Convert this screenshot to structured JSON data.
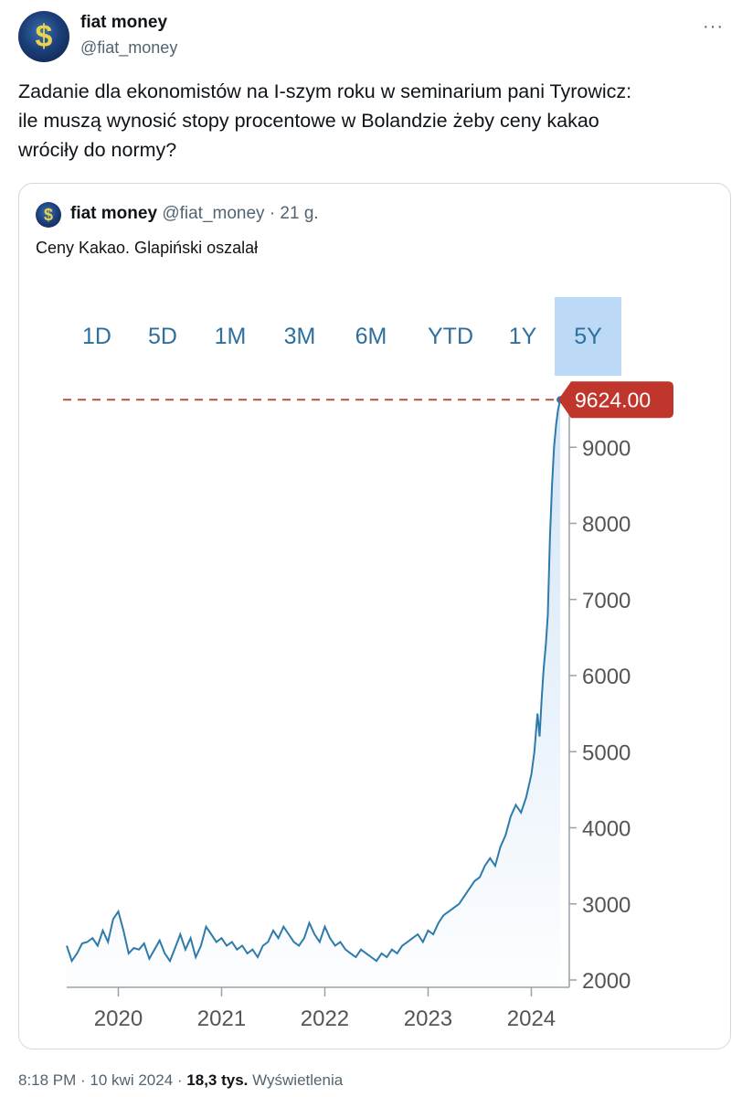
{
  "tweet": {
    "author_name": "fiat money",
    "author_handle": "@fiat_money",
    "more_icon": "more-horizontal-icon",
    "text_lines": [
      "Zadanie dla ekonomistów na I-szym roku w seminarium pani Tyrowicz:",
      "ile muszą wynosić stopy procentowe w Bolandzie żeby ceny kakao",
      "wróciły do normy?"
    ],
    "timestamp": "8:18 PM · 10 kwi 2024",
    "views_count": "18,3 tys.",
    "views_label": "Wyświetlenia"
  },
  "quoted": {
    "author_name": "fiat money",
    "author_handle": "@fiat_money",
    "time": "· 21 g.",
    "text": "Ceny Kakao. Glapiński oszalał"
  },
  "ranges": {
    "items": [
      "1D",
      "5D",
      "1M",
      "3M",
      "6M",
      "YTD",
      "1Y",
      "5Y"
    ],
    "active": "5Y"
  },
  "colors": {
    "line": "#2e7bab",
    "fill_top": "#cfe3f6",
    "dashed": "#b5533c",
    "badge": "#c0362c",
    "active_range": "#bcdaf6"
  },
  "chart_data": {
    "type": "line",
    "last_value_label": "9624.00",
    "last_value": 9624,
    "ylim": [
      2000,
      10000
    ],
    "yticks": [
      2000,
      3000,
      4000,
      5000,
      6000,
      7000,
      8000,
      9000
    ],
    "ytick_labels": [
      "2000",
      "3000",
      "4000",
      "5000",
      "6000",
      "7000",
      "8000",
      "9000"
    ],
    "xticks": [
      2020,
      2021,
      2022,
      2023,
      2024
    ],
    "xtick_labels": [
      "2020",
      "2021",
      "2022",
      "2023",
      "2024"
    ],
    "x_range": [
      2019.5,
      2024.35
    ],
    "series": [
      {
        "x": [
          2019.5,
          2019.55,
          2019.6,
          2019.65,
          2019.7,
          2019.75,
          2019.8,
          2019.85,
          2019.9,
          2019.95,
          2020.0,
          2020.05,
          2020.1,
          2020.15,
          2020.2,
          2020.25,
          2020.3,
          2020.35,
          2020.4,
          2020.45,
          2020.5,
          2020.55,
          2020.6,
          2020.65,
          2020.7,
          2020.75,
          2020.8,
          2020.85,
          2020.9,
          2020.95,
          2021.0,
          2021.05,
          2021.1,
          2021.15,
          2021.2,
          2021.25,
          2021.3,
          2021.35,
          2021.4,
          2021.45,
          2021.5,
          2021.55,
          2021.6,
          2021.65,
          2021.7,
          2021.75,
          2021.8,
          2021.85,
          2021.9,
          2021.95,
          2022.0,
          2022.05,
          2022.1,
          2022.15,
          2022.2,
          2022.25,
          2022.3,
          2022.35,
          2022.4,
          2022.45,
          2022.5,
          2022.55,
          2022.6,
          2022.65,
          2022.7,
          2022.75,
          2022.8,
          2022.85,
          2022.9,
          2022.95,
          2023.0,
          2023.05,
          2023.1,
          2023.15,
          2023.2,
          2023.25,
          2023.3,
          2023.35,
          2023.4,
          2023.45,
          2023.5,
          2023.55,
          2023.6,
          2023.65,
          2023.7,
          2023.75,
          2023.8,
          2023.85,
          2023.9,
          2023.95,
          2024.0,
          2024.03,
          2024.06,
          2024.08,
          2024.1,
          2024.12,
          2024.14,
          2024.16,
          2024.18,
          2024.2,
          2024.22,
          2024.24,
          2024.26,
          2024.28
        ],
        "values": [
          2450,
          2250,
          2350,
          2480,
          2500,
          2550,
          2450,
          2650,
          2500,
          2800,
          2900,
          2650,
          2350,
          2420,
          2400,
          2480,
          2280,
          2400,
          2520,
          2350,
          2250,
          2420,
          2600,
          2400,
          2550,
          2300,
          2450,
          2700,
          2600,
          2500,
          2550,
          2450,
          2500,
          2400,
          2450,
          2350,
          2400,
          2300,
          2450,
          2500,
          2650,
          2550,
          2700,
          2600,
          2500,
          2450,
          2550,
          2750,
          2600,
          2500,
          2700,
          2550,
          2450,
          2500,
          2400,
          2350,
          2300,
          2400,
          2350,
          2300,
          2250,
          2350,
          2300,
          2400,
          2350,
          2450,
          2500,
          2550,
          2600,
          2500,
          2650,
          2600,
          2750,
          2850,
          2900,
          2950,
          3000,
          3100,
          3200,
          3300,
          3350,
          3500,
          3600,
          3500,
          3750,
          3900,
          4150,
          4300,
          4200,
          4400,
          4700,
          5000,
          5500,
          5200,
          5700,
          6100,
          6400,
          6800,
          7800,
          8500,
          9000,
          9300,
          9500,
          9624
        ]
      }
    ]
  }
}
